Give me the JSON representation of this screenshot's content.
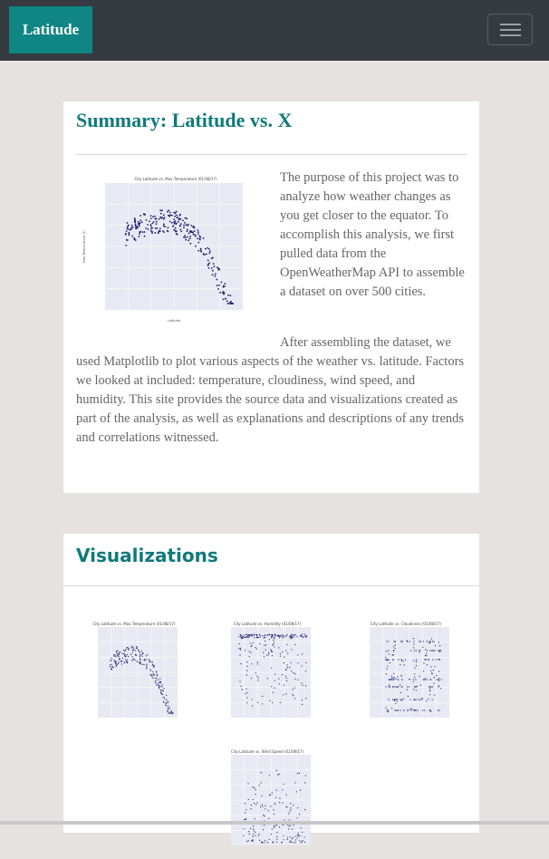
{
  "navbar": {
    "brand": "Latitude",
    "toggle_icon": "hamburger-menu-icon"
  },
  "summary": {
    "title": "Summary: Latitude vs. X",
    "figure_title": "City Latitude vs. Max Temperature (01/08/17)",
    "figure_ylabel": "Max Temperature (F)",
    "figure_xlabel": "Latitude",
    "para1": "The purpose of this project was to analyze how weather changes as you get closer to the equator. To accomplish this analysis, we first pulled data from the OpenWeatherMap API to assemble a dataset on over 500 cities.",
    "para2": "After assembling the dataset, we used Matplotlib to plot various aspects of the weather vs. latitude. Factors we looked at included: temperature, cloudiness, wind speed, and humidity. This site provides the source data and visualizations created as part of the analysis, as well as explanations and descriptions of any trends and correlations witnessed."
  },
  "visualizations": {
    "title": "Visualizations",
    "thumbs": [
      {
        "name": "max-temperature",
        "title": "City Latitude vs. Max Temperature (01/08/17)"
      },
      {
        "name": "humidity",
        "title": "City Latitude vs. Humidity (01/08/17)"
      },
      {
        "name": "cloudiness",
        "title": "City Latitude vs. Cloudiness (01/08/17)"
      },
      {
        "name": "wind-speed",
        "title": "City Latitude vs. Wind Speed (01/08/17)"
      }
    ]
  },
  "colors": {
    "navbar": "#343a40",
    "brand": "#0f8585",
    "heading": "#0f7a7a",
    "points": "#1a1a6e",
    "plot_bg": "#e8eaf3"
  }
}
